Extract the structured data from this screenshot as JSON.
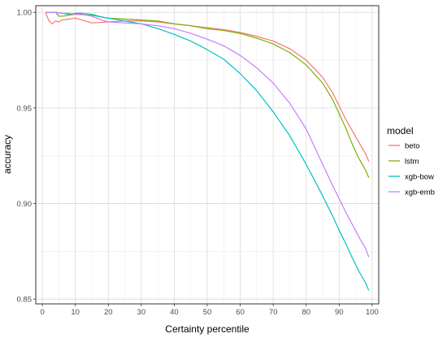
{
  "chart_data": {
    "type": "line",
    "title": "",
    "xlabel": "Certainty percentile",
    "ylabel": "accuracy",
    "xlim": [
      -2,
      102
    ],
    "ylim": [
      0.8475,
      1.0035
    ],
    "x_ticks": [
      0,
      10,
      20,
      30,
      40,
      50,
      60,
      70,
      80,
      90,
      100
    ],
    "y_ticks": [
      0.85,
      0.9,
      0.95,
      1.0
    ],
    "y_tick_labels": [
      "0.85",
      "0.90",
      "0.95",
      "1.00"
    ],
    "grid": true,
    "legend": {
      "title": "model",
      "position": "right"
    },
    "series": [
      {
        "name": "beto",
        "color": "#F8766D",
        "x": [
          1,
          2,
          3,
          4,
          5,
          6,
          8,
          10,
          12,
          15,
          20,
          25,
          30,
          35,
          40,
          45,
          50,
          55,
          60,
          65,
          70,
          75,
          80,
          85,
          88,
          90,
          92,
          94,
          96,
          98,
          99
        ],
        "y": [
          1.0,
          0.9955,
          0.994,
          0.9955,
          0.995,
          0.996,
          0.9965,
          0.997,
          0.996,
          0.9945,
          0.995,
          0.9955,
          0.9955,
          0.995,
          0.994,
          0.993,
          0.992,
          0.991,
          0.9895,
          0.9875,
          0.985,
          0.981,
          0.975,
          0.966,
          0.958,
          0.951,
          0.944,
          0.938,
          0.932,
          0.926,
          0.922
        ]
      },
      {
        "name": "lstm",
        "color": "#7CAE00",
        "x": [
          1,
          2,
          3,
          4,
          5,
          6,
          8,
          10,
          15,
          20,
          25,
          30,
          35,
          40,
          45,
          50,
          55,
          60,
          65,
          70,
          75,
          80,
          85,
          88,
          90,
          92,
          94,
          96,
          98,
          99
        ],
        "y": [
          1.0,
          1.0,
          1.0,
          1.0,
          0.998,
          0.998,
          0.9985,
          0.999,
          0.9985,
          0.997,
          0.9965,
          0.996,
          0.9955,
          0.994,
          0.993,
          0.9915,
          0.9905,
          0.989,
          0.9865,
          0.9835,
          0.979,
          0.9725,
          0.963,
          0.9545,
          0.947,
          0.9395,
          0.931,
          0.9235,
          0.9175,
          0.9135
        ]
      },
      {
        "name": "xgb-bow",
        "color": "#00BFC4",
        "x": [
          1,
          2,
          4,
          6,
          8,
          10,
          12,
          15,
          18,
          20,
          25,
          30,
          35,
          40,
          45,
          50,
          55,
          60,
          65,
          70,
          75,
          80,
          85,
          88,
          90,
          92,
          94,
          96,
          98,
          99
        ],
        "y": [
          1.0,
          1.0,
          1.0,
          0.9995,
          0.999,
          0.9995,
          0.9995,
          0.999,
          0.9975,
          0.997,
          0.9955,
          0.994,
          0.9915,
          0.9885,
          0.985,
          0.9805,
          0.9755,
          0.968,
          0.959,
          0.948,
          0.9355,
          0.9205,
          0.904,
          0.8935,
          0.886,
          0.879,
          0.8715,
          0.8645,
          0.8585,
          0.8545
        ]
      },
      {
        "name": "xgb-emb",
        "color": "#C77CFF",
        "x": [
          1,
          2,
          4,
          6,
          8,
          10,
          12,
          15,
          18,
          20,
          25,
          30,
          35,
          40,
          45,
          50,
          55,
          60,
          65,
          70,
          75,
          80,
          85,
          88,
          90,
          92,
          94,
          96,
          98,
          99
        ],
        "y": [
          1.0,
          1.0,
          1.0,
          0.9995,
          0.9995,
          0.999,
          0.999,
          0.998,
          0.996,
          0.995,
          0.9945,
          0.994,
          0.993,
          0.9915,
          0.989,
          0.986,
          0.9825,
          0.9775,
          0.971,
          0.963,
          0.9525,
          0.939,
          0.9205,
          0.9095,
          0.9025,
          0.8955,
          0.889,
          0.8825,
          0.8765,
          0.872
        ]
      }
    ]
  }
}
